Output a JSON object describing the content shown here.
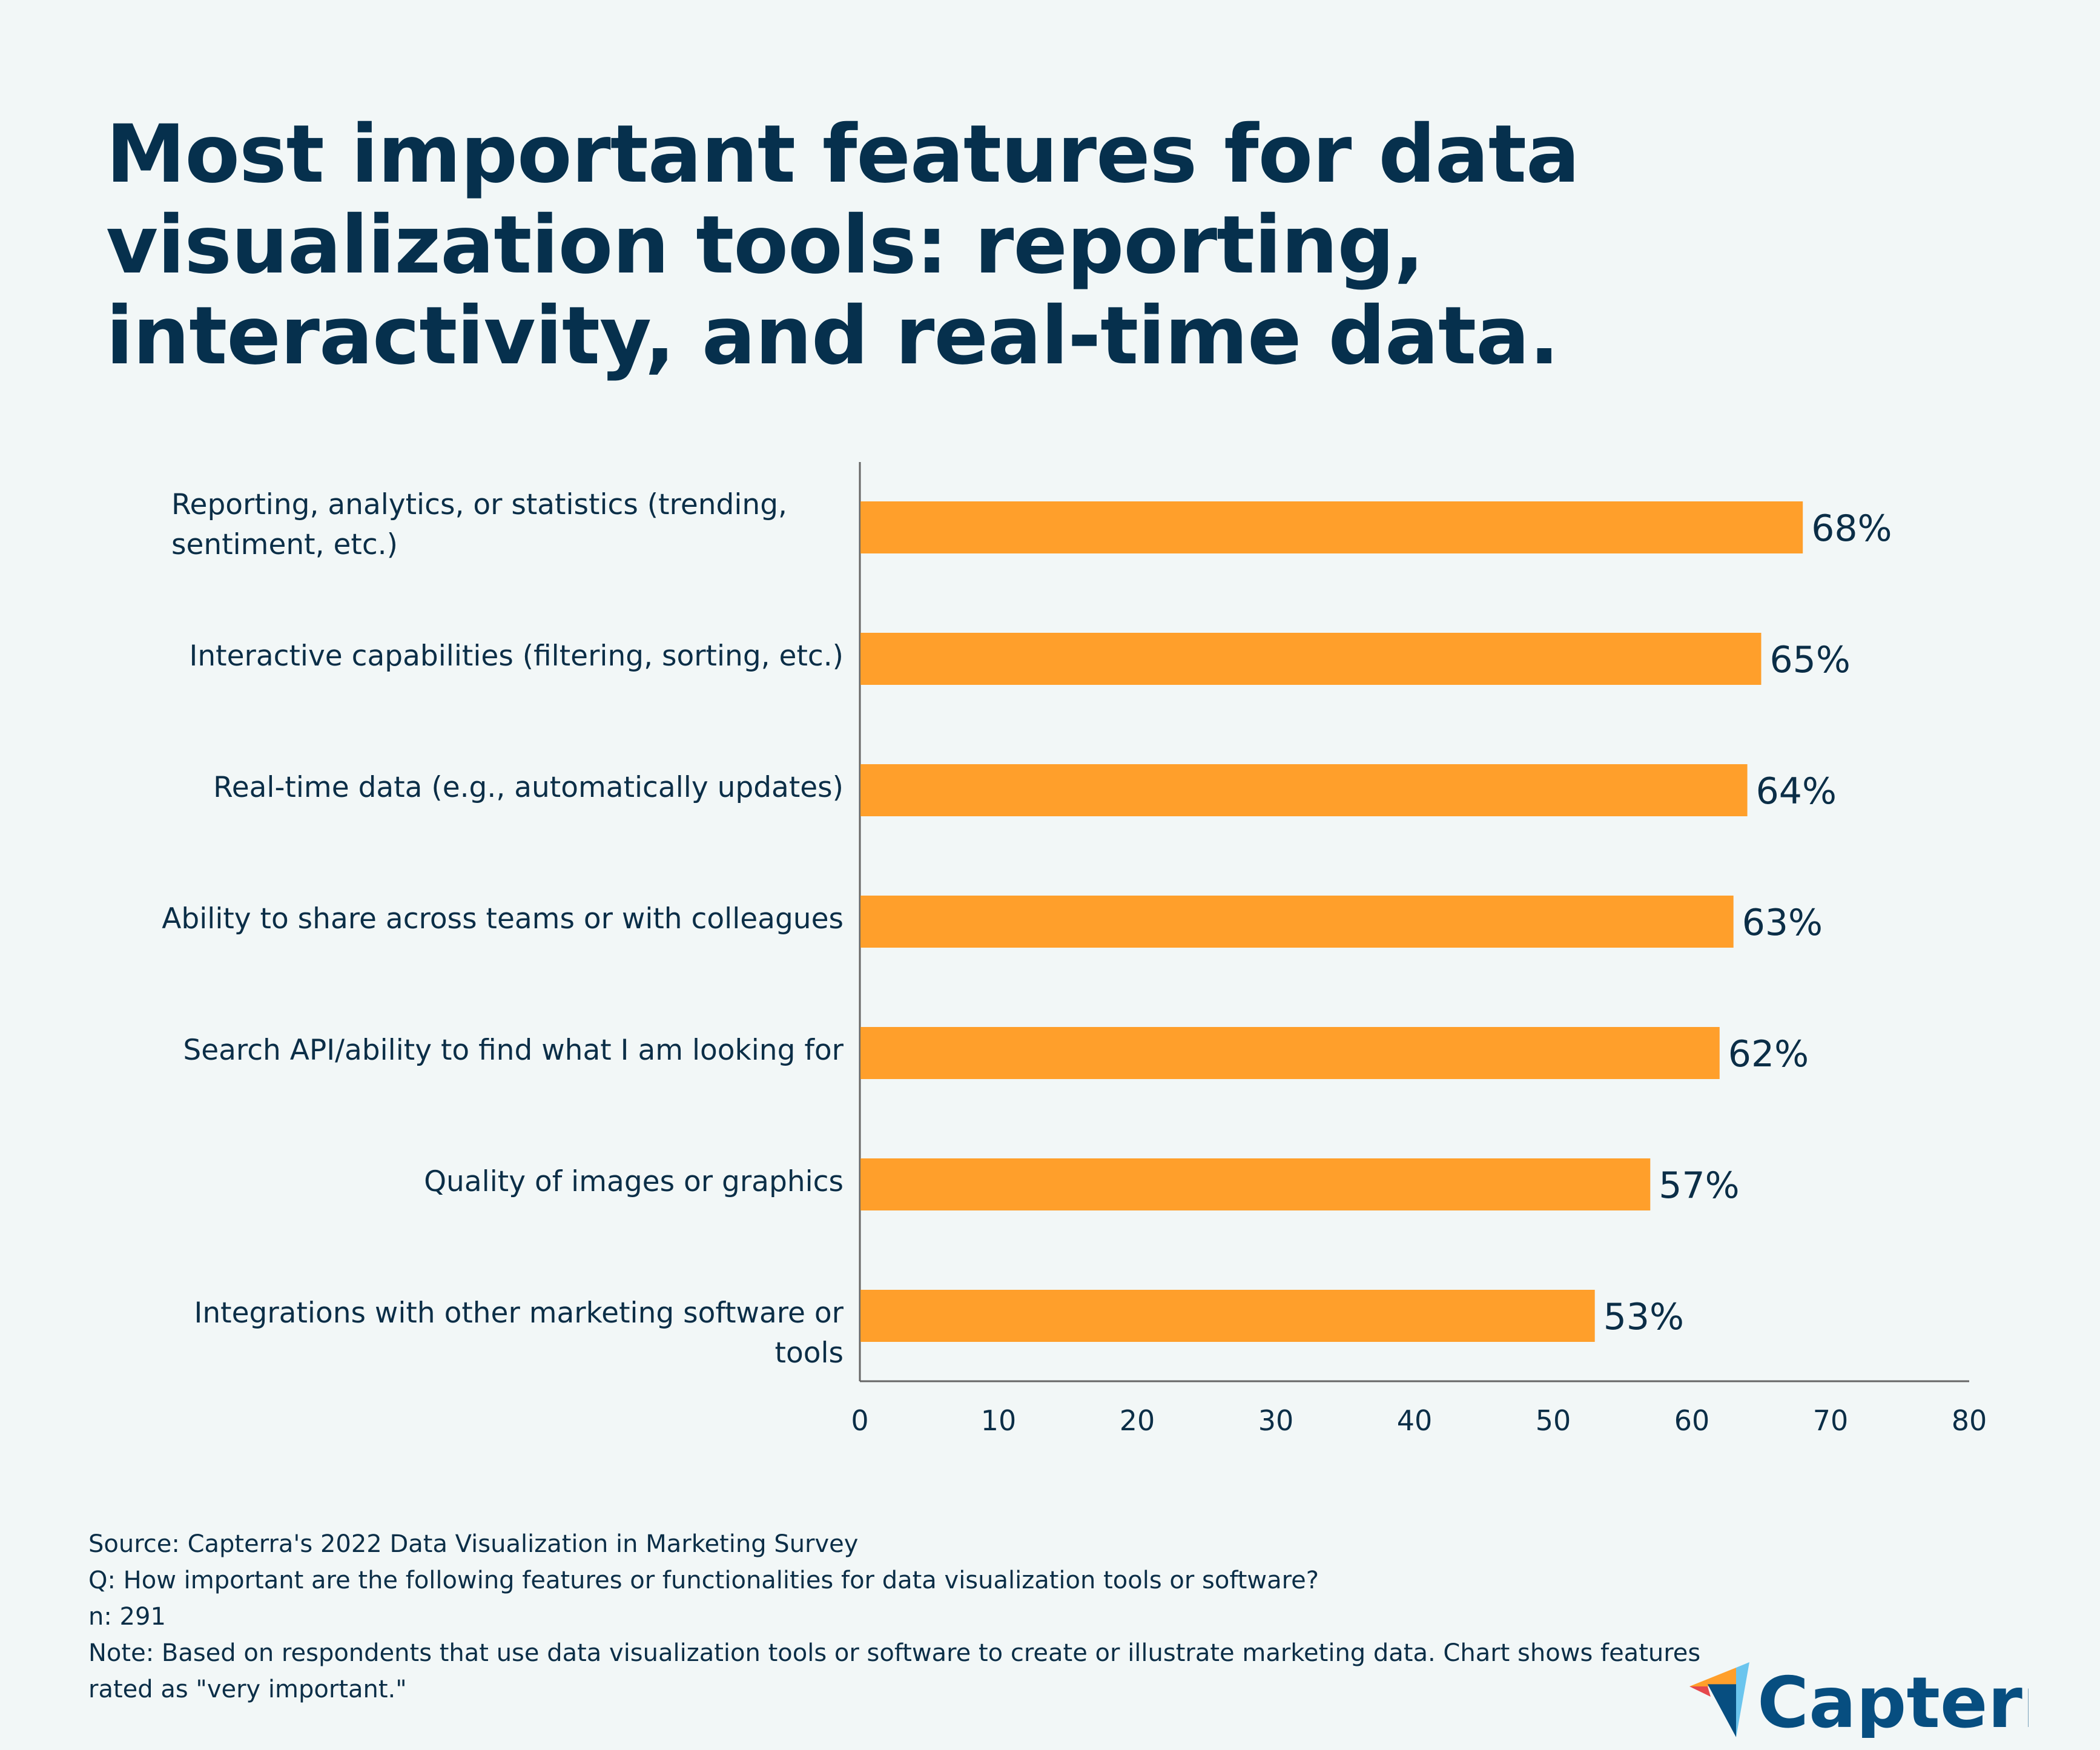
{
  "title": "Most important features for data visualization tools: reporting, interactivity, and real-time data.",
  "chart_data": {
    "type": "bar",
    "orientation": "horizontal",
    "categories": [
      "Reporting, analytics, or statistics (trending, sentiment, etc.)",
      "Interactive capabilities (filtering, sorting, etc.)",
      "Real-time data (e.g., automatically updates)",
      "Ability to share across teams or with colleagues",
      "Search API/ability to find what I am looking for",
      "Quality of images or graphics",
      "Integrations with other marketing software or tools"
    ],
    "values": [
      68,
      65,
      64,
      63,
      62,
      57,
      53
    ],
    "data_labels": [
      "68%",
      "65%",
      "64%",
      "63%",
      "62%",
      "57%",
      "53%"
    ],
    "xlim": [
      0,
      80
    ],
    "xticks": [
      0,
      10,
      20,
      30,
      40,
      50,
      60,
      70,
      80
    ],
    "grid": false,
    "bar_color": "#ff9f2b"
  },
  "footer": {
    "source": "Source: Capterra's 2022 Data Visualization in Marketing Survey",
    "question": "Q: How important are the following features or functionalities for data visualization tools or software?",
    "n": "n: 291",
    "note": "Note: Based on respondents that use data visualization tools or software to create or illustrate marketing data. Chart shows features rated as \"very important.\""
  },
  "logo": {
    "text": "Capterra",
    "color": "#074e80"
  }
}
